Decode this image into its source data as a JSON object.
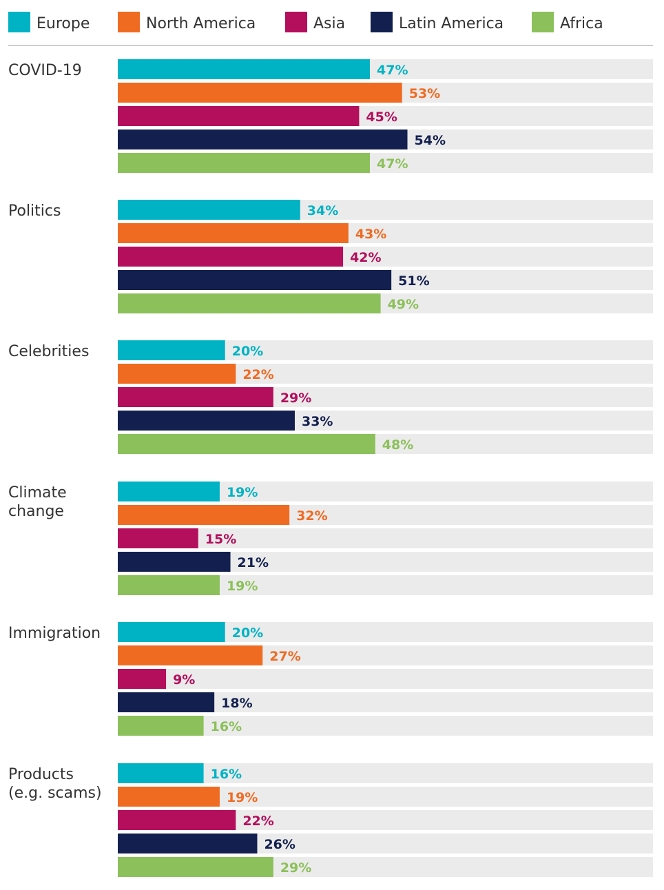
{
  "chart_data": {
    "type": "bar",
    "orientation": "horizontal",
    "categories": [
      "COVID-19",
      "Politics",
      "Celebrities",
      "Climate change",
      "Immigration",
      "Products (e.g. scams)"
    ],
    "category_lines": [
      [
        "COVID-19"
      ],
      [
        "Politics"
      ],
      [
        "Celebrities"
      ],
      [
        "Climate",
        "change"
      ],
      [
        "Immigration"
      ],
      [
        "Products",
        "(e.g. scams)"
      ]
    ],
    "series": [
      {
        "name": "Europe",
        "color": "#00b3c4",
        "values": [
          47,
          34,
          20,
          19,
          20,
          16
        ],
        "labels": [
          "47%",
          "34%",
          "20%",
          "19%",
          "20%",
          "16%"
        ]
      },
      {
        "name": "North America",
        "color": "#f06b22",
        "values": [
          53,
          43,
          22,
          32,
          27,
          19
        ],
        "labels": [
          "53%",
          "43%",
          "22%",
          "32%",
          "27%",
          "19%"
        ]
      },
      {
        "name": "Asia",
        "color": "#b30f5c",
        "values": [
          45,
          42,
          29,
          15,
          9,
          22
        ],
        "labels": [
          "45%",
          "42%",
          "29%",
          "15%",
          "9%",
          "22%"
        ]
      },
      {
        "name": "Latin America",
        "color": "#13204f",
        "values": [
          54,
          51,
          33,
          21,
          18,
          26
        ],
        "labels": [
          "54%",
          "51%",
          "33%",
          "21%",
          "18%",
          "26%"
        ]
      },
      {
        "name": "Africa",
        "color": "#8cc05a",
        "values": [
          47,
          49,
          48,
          19,
          16,
          29
        ],
        "labels": [
          "47%",
          "49%",
          "48%",
          "19%",
          "16%",
          "29%"
        ]
      }
    ],
    "xlim": [
      0,
      100
    ],
    "legend_position": "top",
    "track_color": "#ebebeb",
    "grid": false
  }
}
